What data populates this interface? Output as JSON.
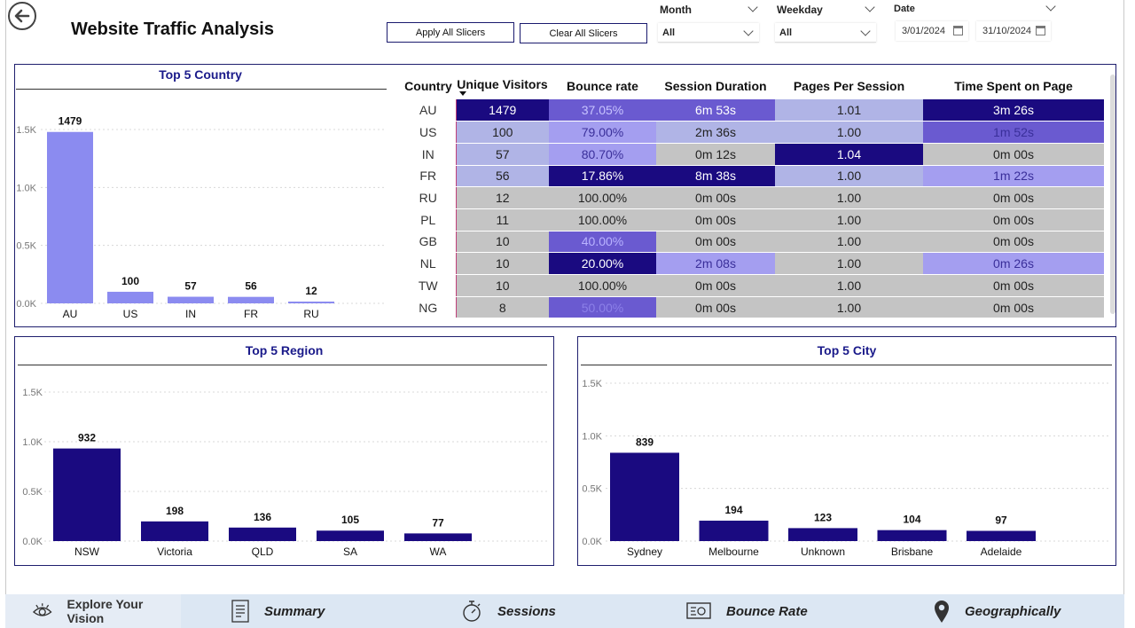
{
  "page": {
    "title": "Website Traffic Analysis"
  },
  "slicers": {
    "apply_label": "Apply All Slicers",
    "clear_label": "Clear All Slicers",
    "month": {
      "label": "Month",
      "value": "All"
    },
    "weekday": {
      "label": "Weekday",
      "value": "All"
    },
    "date": {
      "label": "Date",
      "start": "3/01/2024",
      "end": "31/10/2024"
    }
  },
  "table": {
    "headers": [
      "Country",
      "Unique Visitors",
      "Bounce rate",
      "Session Duration",
      "Pages Per Session",
      "Time Spent on Page"
    ],
    "rows": [
      [
        "AU",
        "1479",
        "37.05%",
        "6m 53s",
        "1.01",
        "3m 26s"
      ],
      [
        "US",
        "100",
        "79.00%",
        "2m 36s",
        "1.00",
        "1m 52s"
      ],
      [
        "IN",
        "57",
        "80.70%",
        "0m 12s",
        "1.04",
        "0m 00s"
      ],
      [
        "FR",
        "56",
        "17.86%",
        "8m 38s",
        "1.00",
        "1m 22s"
      ],
      [
        "RU",
        "12",
        "100.00%",
        "0m 00s",
        "1.00",
        "0m 00s"
      ],
      [
        "PL",
        "11",
        "100.00%",
        "0m 00s",
        "1.00",
        "0m 00s"
      ],
      [
        "GB",
        "10",
        "40.00%",
        "0m 00s",
        "1.00",
        "0m 00s"
      ],
      [
        "NL",
        "10",
        "20.00%",
        "2m 08s",
        "1.00",
        "0m 26s"
      ],
      [
        "TW",
        "10",
        "100.00%",
        "0m 00s",
        "1.00",
        "0m 00s"
      ],
      [
        "NG",
        "8",
        "50.00%",
        "0m 00s",
        "1.00",
        "0m 00s"
      ]
    ],
    "colors": {
      "dark": "#1a0a80",
      "mid": "#6a5ad0",
      "light": "#a49ef0",
      "lav": "#b0b4e6",
      "grey": "#c4c4c4"
    }
  },
  "chart_data": [
    {
      "type": "bar",
      "title": "Top 5 Country",
      "categories": [
        "AU",
        "US",
        "IN",
        "FR",
        "RU"
      ],
      "values": [
        1479,
        100,
        57,
        56,
        12
      ],
      "yticks": [
        "0.0K",
        "0.5K",
        "1.0K",
        "1.5K"
      ],
      "ylim": [
        0,
        1500
      ],
      "color": "#8b8bf0",
      "grid": true
    },
    {
      "type": "bar",
      "title": "Top 5 Region",
      "categories": [
        "NSW",
        "Victoria",
        "QLD",
        "SA",
        "WA"
      ],
      "values": [
        932,
        198,
        136,
        105,
        77
      ],
      "yticks": [
        "0.0K",
        "0.5K",
        "1.0K",
        "1.5K"
      ],
      "ylim": [
        0,
        1500
      ],
      "color": "#1a0a80",
      "grid": true
    },
    {
      "type": "bar",
      "title": "Top 5 City",
      "categories": [
        "Sydney",
        "Melbourne",
        "Unknown",
        "Brisbane",
        "Adelaide"
      ],
      "values": [
        839,
        194,
        123,
        104,
        97
      ],
      "yticks": [
        "0.0K",
        "0.5K",
        "1.0K",
        "1.5K"
      ],
      "ylim": [
        0,
        1500
      ],
      "color": "#1a0a80",
      "grid": true
    }
  ],
  "nav": {
    "items": [
      {
        "label": "Explore Your Vision",
        "icon": "eye-icon"
      },
      {
        "label": "Summary",
        "icon": "document-icon"
      },
      {
        "label": "Sessions",
        "icon": "stopwatch-icon"
      },
      {
        "label": "Bounce Rate",
        "icon": "monitor-icon"
      },
      {
        "label": "Geographically",
        "icon": "map-pin-icon"
      }
    ]
  }
}
